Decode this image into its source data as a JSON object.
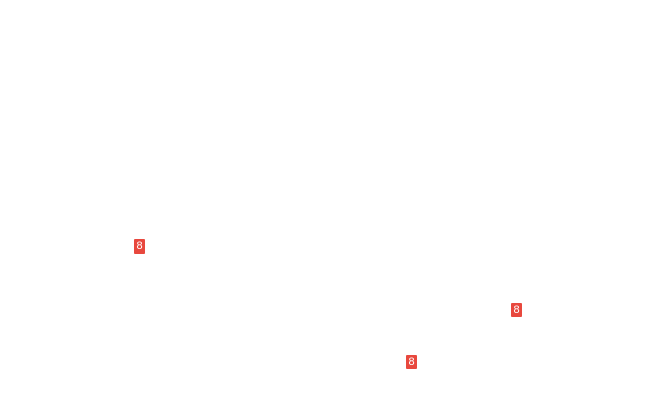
{
  "badges": [
    {
      "value": "8"
    },
    {
      "value": "8"
    },
    {
      "value": "8"
    }
  ],
  "colors": {
    "page_background": "#ffffff",
    "badge_background": "#e8483e",
    "badge_text": "#ffffff"
  }
}
